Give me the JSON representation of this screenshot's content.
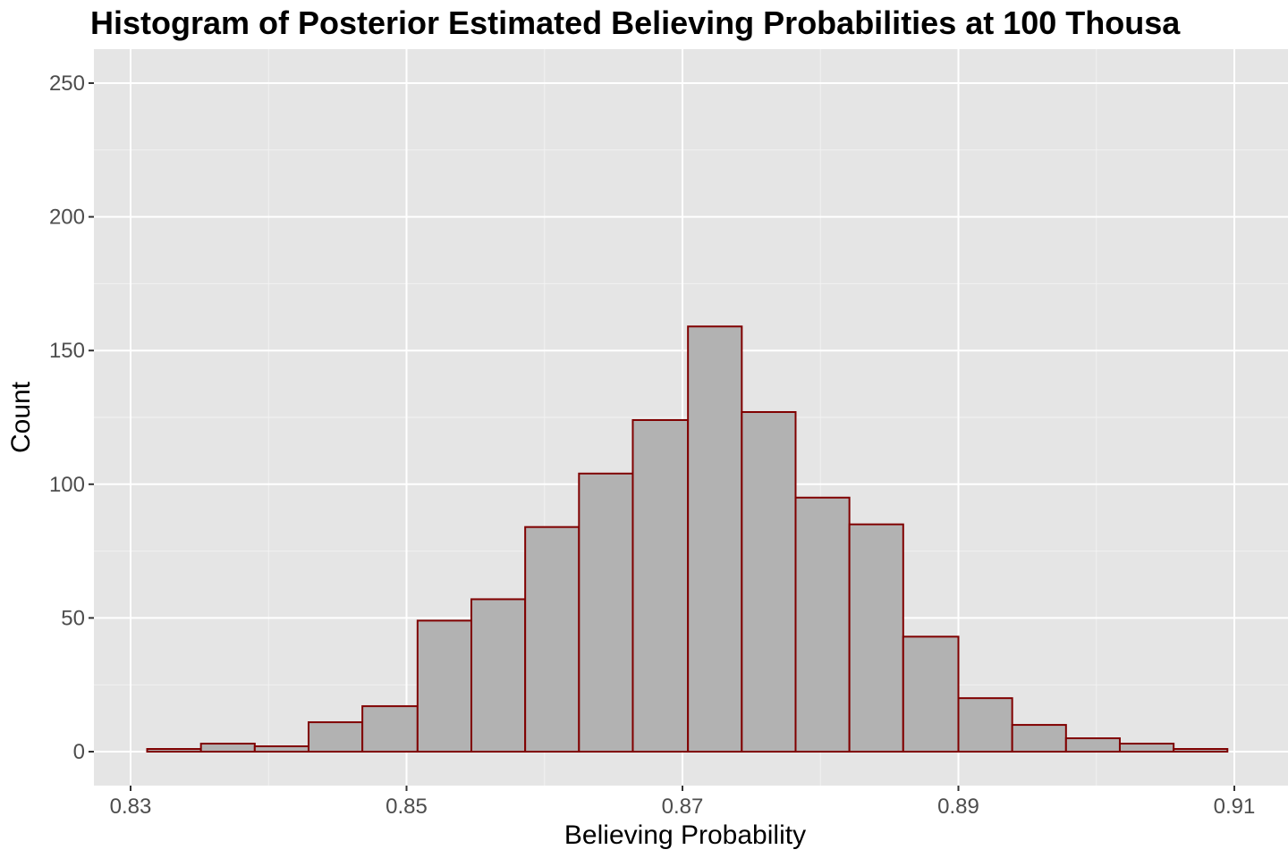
{
  "chart_data": {
    "type": "bar",
    "title": "Histogram of Posterior Estimated Believing Probabilities at 100 Thousa",
    "xlabel": "Believing Probability",
    "ylabel": "Count",
    "xlim": [
      0.83,
      0.91
    ],
    "ylim": [
      0,
      250
    ],
    "x_ticks": [
      0.83,
      0.85,
      0.87,
      0.89,
      0.91
    ],
    "x_tick_labels": [
      "0.83",
      "0.85",
      "0.87",
      "0.89",
      "0.91"
    ],
    "y_ticks": [
      0,
      50,
      100,
      150,
      200,
      250
    ],
    "y_tick_labels": [
      "0",
      "50",
      "100",
      "150",
      "200",
      "250"
    ],
    "grid": true,
    "legend": "none",
    "bin_width": 0.00392,
    "bins": [
      {
        "x_start": 0.8312,
        "x_end": 0.8351,
        "count": 1
      },
      {
        "x_start": 0.8351,
        "x_end": 0.839,
        "count": 3
      },
      {
        "x_start": 0.839,
        "x_end": 0.8429,
        "count": 2
      },
      {
        "x_start": 0.8429,
        "x_end": 0.8468,
        "count": 11
      },
      {
        "x_start": 0.8468,
        "x_end": 0.8508,
        "count": 17
      },
      {
        "x_start": 0.8508,
        "x_end": 0.8547,
        "count": 49
      },
      {
        "x_start": 0.8547,
        "x_end": 0.8586,
        "count": 57
      },
      {
        "x_start": 0.8586,
        "x_end": 0.8625,
        "count": 84
      },
      {
        "x_start": 0.8625,
        "x_end": 0.8664,
        "count": 104
      },
      {
        "x_start": 0.8664,
        "x_end": 0.8704,
        "count": 124
      },
      {
        "x_start": 0.8704,
        "x_end": 0.8743,
        "count": 159
      },
      {
        "x_start": 0.8743,
        "x_end": 0.8782,
        "count": 127
      },
      {
        "x_start": 0.8782,
        "x_end": 0.8821,
        "count": 95
      },
      {
        "x_start": 0.8821,
        "x_end": 0.886,
        "count": 85
      },
      {
        "x_start": 0.886,
        "x_end": 0.89,
        "count": 43
      },
      {
        "x_start": 0.89,
        "x_end": 0.8939,
        "count": 20
      },
      {
        "x_start": 0.8939,
        "x_end": 0.8978,
        "count": 10
      },
      {
        "x_start": 0.8978,
        "x_end": 0.9017,
        "count": 5
      },
      {
        "x_start": 0.9017,
        "x_end": 0.9056,
        "count": 3
      },
      {
        "x_start": 0.9056,
        "x_end": 0.9095,
        "count": 1
      }
    ],
    "colors": {
      "panel_background": "#e5e5e5",
      "grid_major": "#ffffff",
      "grid_minor": "#f2f2f2",
      "bar_fill": "#b2b2b2",
      "bar_outline": "#800000",
      "tick_color": "#333333"
    }
  }
}
